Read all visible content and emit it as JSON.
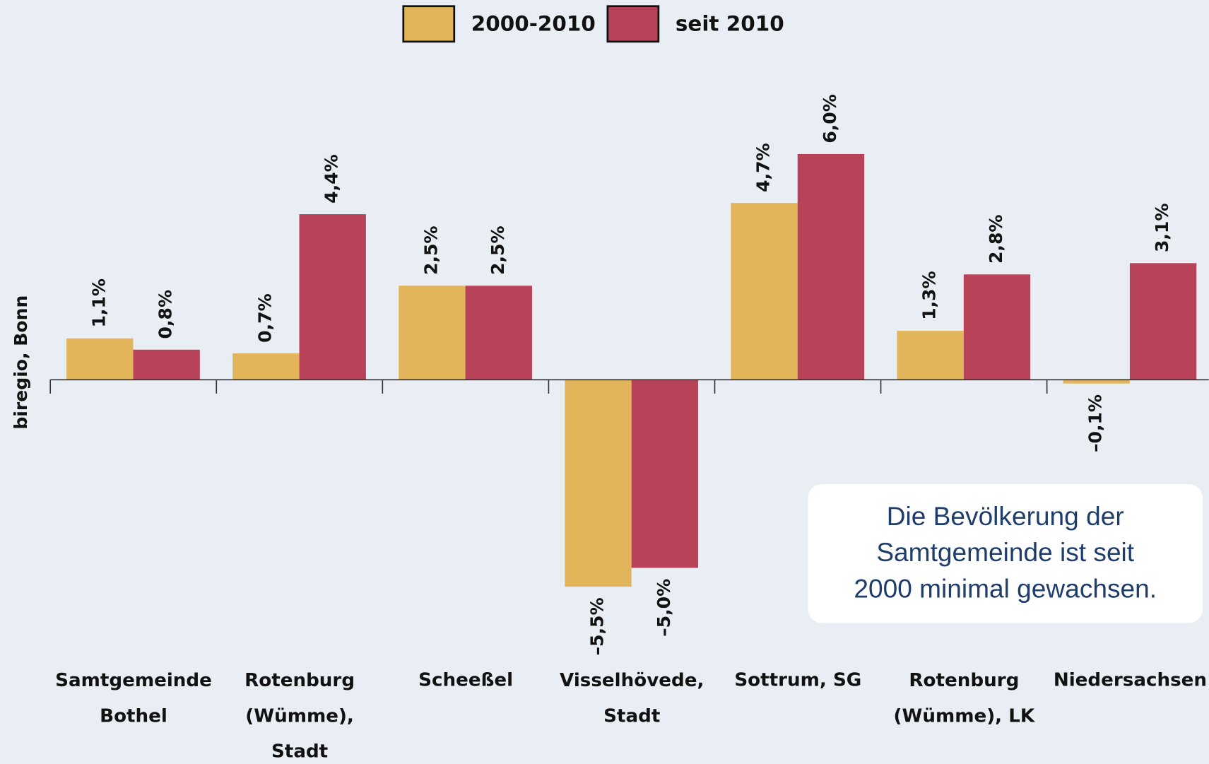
{
  "chart_data": {
    "type": "bar",
    "source": "biregio, Bonn",
    "categories": [
      "Samtgemeinde\nBothel",
      "Rotenburg\n(Wümme),\nStadt",
      "Scheeßel",
      "Visselhövede,\nStadt",
      "Sottrum, SG",
      "Rotenburg\n(Wümme), LK",
      "Niedersachsen"
    ],
    "series": [
      {
        "name": "2000-2010",
        "color": "#e3b55a",
        "values": [
          1.1,
          0.7,
          2.5,
          -5.5,
          4.7,
          1.3,
          -0.1
        ],
        "value_labels": [
          "1,1%",
          "0,7%",
          "2,5%",
          "–5,5%",
          "4,7%",
          "1,3%",
          "–0,1%"
        ]
      },
      {
        "name": "seit 2010",
        "color": "#b84257",
        "values": [
          0.8,
          4.4,
          2.5,
          -5.0,
          6.0,
          2.8,
          3.1
        ],
        "value_labels": [
          "0,8%",
          "4,4%",
          "2,5%",
          "–5,0%",
          "6,0%",
          "2,8%",
          "3,1%"
        ]
      }
    ],
    "ylim": [
      -8,
      7
    ],
    "annotation": [
      "Die Bevölkerung der",
      "Samtgemeinde ist seit",
      "2000 minimal gewachsen."
    ]
  }
}
